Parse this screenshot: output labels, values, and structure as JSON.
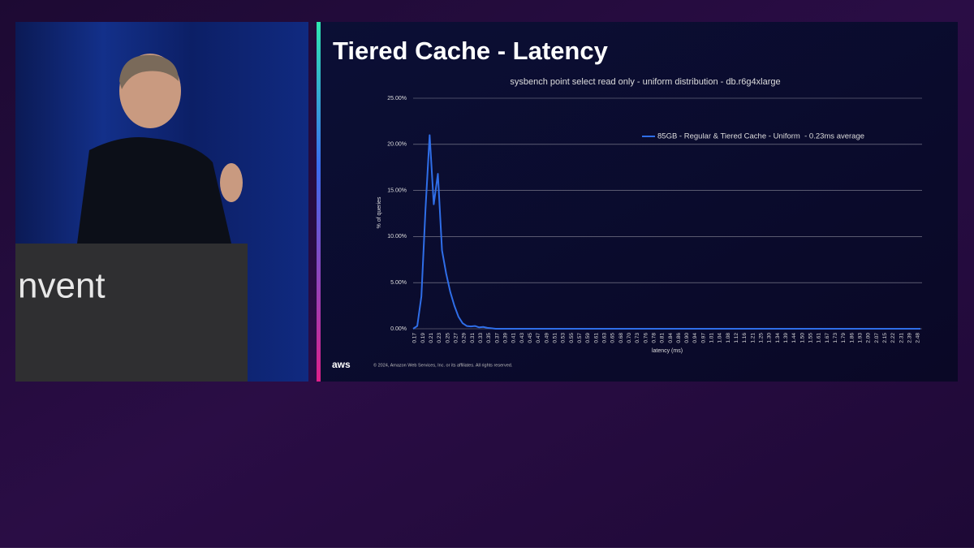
{
  "podium_text": "nvent",
  "slide_title": "Tiered Cache - Latency",
  "logo": "aws",
  "copyright": "© 2024, Amazon Web Services, Inc. or its affiliates. All rights reserved.",
  "chart_data": {
    "type": "line",
    "title": "sysbench point select read only - uniform distribution - db.r6g4xlarge",
    "x_label": "latency (ms)",
    "y_label": "% of queries",
    "categories": [
      "0.17",
      null,
      "0.19",
      null,
      "0.21",
      null,
      "0.23",
      null,
      "0.25",
      null,
      "0.27",
      null,
      "0.29",
      null,
      "0.31",
      null,
      "0.33",
      null,
      "0.35",
      null,
      "0.37",
      null,
      "0.39",
      null,
      "0.41",
      null,
      "0.43",
      null,
      "0.45",
      null,
      "0.47",
      null,
      "0.49",
      null,
      "0.51",
      null,
      "0.53",
      null,
      "0.55",
      null,
      "0.57",
      null,
      "0.59",
      null,
      "0.61",
      null,
      "0.63",
      null,
      "0.65",
      null,
      "0.68",
      null,
      "0.70",
      null,
      "0.73",
      null,
      "0.76",
      null,
      "0.78",
      null,
      "0.81",
      null,
      "0.84",
      null,
      "0.86",
      null,
      "0.90",
      null,
      "0.94",
      null,
      "0.97",
      null,
      "1.01",
      null,
      "1.04",
      null,
      "1.08",
      null,
      "1.12",
      null,
      "1.16",
      null,
      "1.21",
      null,
      "1.25",
      null,
      "1.30",
      null,
      "1.34",
      null,
      "1.39",
      null,
      "1.44",
      null,
      "1.50",
      null,
      "1.55",
      null,
      "1.61",
      null,
      "1.67",
      null,
      "1.73",
      null,
      "1.79",
      null,
      "1.86",
      null,
      "1.93",
      null,
      "2.00",
      null,
      "2.07",
      null,
      "2.15",
      null,
      "2.22",
      null,
      "2.31",
      null,
      "2.39",
      null,
      "2.48",
      null
    ],
    "series": [
      {
        "name": "85GB - Regular & Tiered Cache - Uniform  - 0.23ms average",
        "color": "#2f6ee8",
        "values": [
          0,
          0.3,
          3.5,
          13,
          21,
          13.5,
          16.8,
          8.5,
          6,
          4,
          2.5,
          1.3,
          0.6,
          0.3,
          0.25,
          0.3,
          0.15,
          0.2,
          0.1,
          0.05,
          0,
          0,
          0,
          0,
          0,
          0,
          0,
          0,
          0,
          0,
          0,
          0,
          0,
          0,
          0,
          0,
          0,
          0,
          0,
          0,
          0,
          0,
          0,
          0,
          0,
          0,
          0,
          0,
          0,
          0,
          0,
          0,
          0,
          0,
          0,
          0,
          0,
          0,
          0,
          0,
          0,
          0,
          0,
          0,
          0,
          0,
          0,
          0,
          0,
          0,
          0,
          0,
          0,
          0,
          0,
          0,
          0,
          0,
          0,
          0,
          0,
          0,
          0,
          0,
          0,
          0,
          0,
          0,
          0,
          0,
          0,
          0,
          0,
          0,
          0,
          0,
          0,
          0,
          0,
          0,
          0,
          0,
          0,
          0,
          0,
          0,
          0,
          0,
          0,
          0,
          0,
          0,
          0,
          0,
          0,
          0,
          0,
          0,
          0,
          0,
          0,
          0,
          0,
          0
        ]
      }
    ],
    "ylim": [
      0,
      25
    ],
    "yticks": [
      {
        "value": 0,
        "label": "0.00%"
      },
      {
        "value": 5,
        "label": "5.00%"
      },
      {
        "value": 10,
        "label": "10.00%"
      },
      {
        "value": 15,
        "label": "15.00%"
      },
      {
        "value": 20,
        "label": "20.00%"
      },
      {
        "value": 25,
        "label": "25.00%"
      }
    ],
    "grid": true
  }
}
